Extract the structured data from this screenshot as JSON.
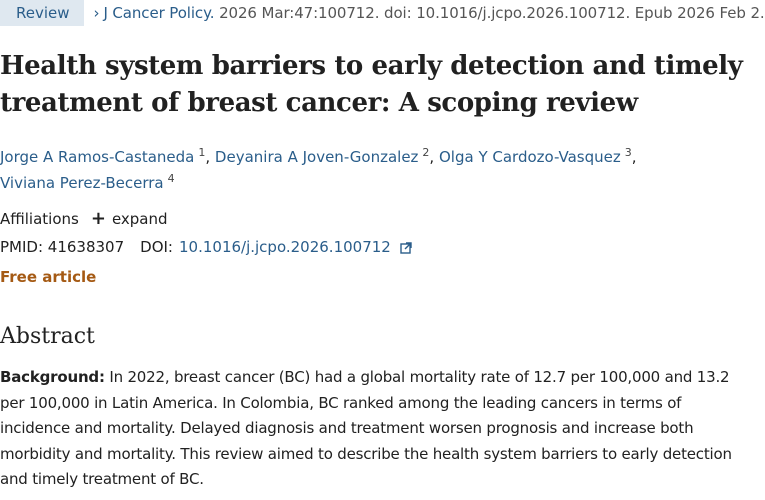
{
  "citation": {
    "publication_type": "Review",
    "journal": "J Cancer Policy.",
    "details": "2026 Mar:47:100712. doi: 10.1016/j.jcpo.2026.100712. Epub 2026 Feb 2."
  },
  "article": {
    "title": "Health system barriers to early detection and timely treatment of breast cancer: A scoping review"
  },
  "authors": [
    {
      "name": "Jorge A Ramos-Castaneda",
      "affil": "1"
    },
    {
      "name": "Deyanira A Joven-Gonzalez",
      "affil": "2"
    },
    {
      "name": "Olga Y Cardozo-Vasquez",
      "affil": "3"
    },
    {
      "name": "Viviana Perez-Becerra",
      "affil": "4"
    }
  ],
  "affiliations": {
    "label": "Affiliations",
    "expand_label": "expand",
    "expand_icon": "plus-icon"
  },
  "identifiers": {
    "pmid_label": "PMID:",
    "pmid": "41638307",
    "doi_label": "DOI:",
    "doi": "10.1016/j.jcpo.2026.100712",
    "doi_icon": "external-link-icon"
  },
  "access": {
    "free_label": "Free article"
  },
  "abstract": {
    "heading": "Abstract",
    "background_label": "Background:",
    "background_text": "In 2022, breast cancer (BC) had a global mortality rate of 12.7 per 100,000 and 13.2 per 100,000 in Latin America. In Colombia, BC ranked among the leading cancers in terms of incidence and mortality. Delayed diagnosis and treatment worsen prognosis and increase both morbidity and mortality. This review aimed to describe the health system barriers to early detection and timely treatment of BC."
  },
  "colors": {
    "link": "#2a5d8a",
    "free_article": "#a55a14",
    "review_badge_bg": "#dfe8f0"
  }
}
